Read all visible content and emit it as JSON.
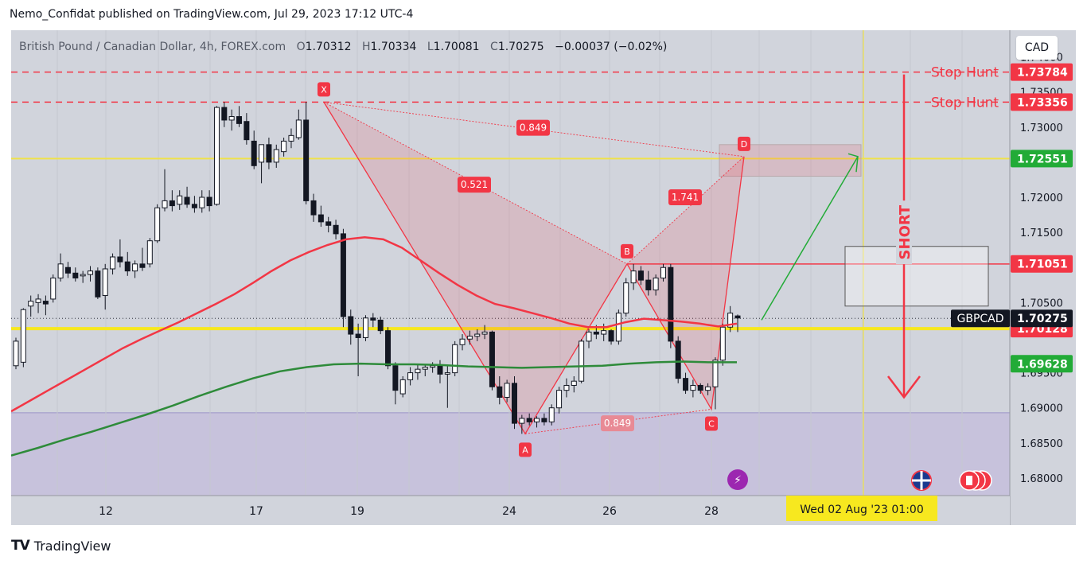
{
  "header": {
    "text": "Nemo_Confidat published on TradingView.com, Jul 29, 2023 17:12 UTC-4"
  },
  "legend": {
    "symbol": "British Pound / Canadian Dollar, 4h, FOREX.com",
    "o_label": "O",
    "o": "1.70312",
    "h_label": "H",
    "h": "1.70334",
    "l_label": "L",
    "l": "1.70081",
    "c_label": "C",
    "c": "1.70275",
    "change": "−0.00037 (−0.02%)"
  },
  "currency_button": "CAD",
  "footer": {
    "logo": "TV",
    "brand": "TradingView"
  },
  "chart_data": {
    "type": "candlestick",
    "symbol": "GBPCAD",
    "timeframe": "4h",
    "x_ticks": [
      "12",
      "17",
      "19",
      "24",
      "26",
      "28"
    ],
    "y_ticks": [
      "1.74000",
      "1.73500",
      "1.73000",
      "1.72000",
      "1.71500",
      "1.70500",
      "1.69500",
      "1.69000",
      "1.68500",
      "1.68000"
    ],
    "ylim": [
      1.6775,
      1.7438
    ],
    "price_labels": [
      {
        "text": "1.73784",
        "value": 1.73784,
        "color": "#f23645",
        "text_color": "#ffffff"
      },
      {
        "text": "1.73356",
        "value": 1.73356,
        "color": "#f23645",
        "text_color": "#ffffff"
      },
      {
        "text": "1.72551",
        "value": 1.72551,
        "color": "#22ab37",
        "text_color": "#ffffff"
      },
      {
        "text": "1.71051",
        "value": 1.71051,
        "color": "#f23645",
        "text_color": "#ffffff"
      },
      {
        "text": "1.70128",
        "value": 1.70128,
        "color": "#f23645",
        "text_color": "#ffffff"
      },
      {
        "text": "1.70275",
        "value": 1.70275,
        "color": "#131722",
        "text_color": "#ffffff"
      },
      {
        "text": "1.69628",
        "value": 1.69628,
        "color": "#22ab37",
        "text_color": "#ffffff"
      }
    ],
    "symbol_tag": "GBPCAD",
    "horizontal_lines": [
      {
        "label": "Stop Hunt",
        "value": 1.73784,
        "color": "#f23645",
        "style": "dashed"
      },
      {
        "label": "Stop Hunt",
        "value": 1.73356,
        "color": "#f23645",
        "style": "dashed"
      }
    ],
    "yellow_lines": [
      1.72551,
      1.70128
    ],
    "time_label": "Wed 02 Aug '23   01:00",
    "pattern_points": [
      {
        "label": "X",
        "value": 1.73356
      },
      {
        "label": "A",
        "value": 1.6863
      },
      {
        "label": "B",
        "value": 1.7105
      },
      {
        "label": "C",
        "value": 1.6898
      },
      {
        "label": "D",
        "value": 1.7258
      }
    ],
    "ratios": [
      "0.849",
      "0.521",
      "1.741",
      "0.849"
    ],
    "annotation_text": "SHORT",
    "candles": [
      {
        "o": 1.696,
        "h": 1.7,
        "l": 1.6955,
        "c": 1.6995
      },
      {
        "o": 1.6965,
        "h": 1.7042,
        "l": 1.6958,
        "c": 1.704
      },
      {
        "o": 1.7045,
        "h": 1.706,
        "l": 1.703,
        "c": 1.7052
      },
      {
        "o": 1.705,
        "h": 1.7062,
        "l": 1.7035,
        "c": 1.7055
      },
      {
        "o": 1.7052,
        "h": 1.706,
        "l": 1.7032,
        "c": 1.7048
      },
      {
        "o": 1.7055,
        "h": 1.709,
        "l": 1.705,
        "c": 1.7085
      },
      {
        "o": 1.7085,
        "h": 1.712,
        "l": 1.708,
        "c": 1.7105
      },
      {
        "o": 1.71,
        "h": 1.7108,
        "l": 1.7085,
        "c": 1.7092
      },
      {
        "o": 1.7092,
        "h": 1.71,
        "l": 1.708,
        "c": 1.7085
      },
      {
        "o": 1.7088,
        "h": 1.7095,
        "l": 1.7078,
        "c": 1.709
      },
      {
        "o": 1.709,
        "h": 1.7102,
        "l": 1.708,
        "c": 1.7095
      },
      {
        "o": 1.7095,
        "h": 1.71,
        "l": 1.7055,
        "c": 1.7058
      },
      {
        "o": 1.706,
        "h": 1.7105,
        "l": 1.704,
        "c": 1.7098
      },
      {
        "o": 1.7098,
        "h": 1.712,
        "l": 1.709,
        "c": 1.7115
      },
      {
        "o": 1.7115,
        "h": 1.714,
        "l": 1.71,
        "c": 1.7108
      },
      {
        "o": 1.7108,
        "h": 1.7122,
        "l": 1.7088,
        "c": 1.7095
      },
      {
        "o": 1.7095,
        "h": 1.711,
        "l": 1.7085,
        "c": 1.7105
      },
      {
        "o": 1.7105,
        "h": 1.7128,
        "l": 1.7095,
        "c": 1.71
      },
      {
        "o": 1.7105,
        "h": 1.7142,
        "l": 1.71,
        "c": 1.7138
      },
      {
        "o": 1.7138,
        "h": 1.719,
        "l": 1.7135,
        "c": 1.7185
      },
      {
        "o": 1.7185,
        "h": 1.724,
        "l": 1.718,
        "c": 1.7195
      },
      {
        "o": 1.7195,
        "h": 1.721,
        "l": 1.718,
        "c": 1.7188
      },
      {
        "o": 1.719,
        "h": 1.721,
        "l": 1.7182,
        "c": 1.7202
      },
      {
        "o": 1.72,
        "h": 1.7215,
        "l": 1.7185,
        "c": 1.719
      },
      {
        "o": 1.719,
        "h": 1.7202,
        "l": 1.7178,
        "c": 1.7185
      },
      {
        "o": 1.7185,
        "h": 1.721,
        "l": 1.7178,
        "c": 1.72
      },
      {
        "o": 1.72,
        "h": 1.721,
        "l": 1.718,
        "c": 1.7188
      },
      {
        "o": 1.719,
        "h": 1.733,
        "l": 1.7188,
        "c": 1.7328
      },
      {
        "o": 1.7328,
        "h": 1.7336,
        "l": 1.73,
        "c": 1.731
      },
      {
        "o": 1.731,
        "h": 1.7325,
        "l": 1.7295,
        "c": 1.7315
      },
      {
        "o": 1.7315,
        "h": 1.733,
        "l": 1.73,
        "c": 1.7305
      },
      {
        "o": 1.7308,
        "h": 1.732,
        "l": 1.7275,
        "c": 1.7282
      },
      {
        "o": 1.728,
        "h": 1.7295,
        "l": 1.724,
        "c": 1.7245
      },
      {
        "o": 1.725,
        "h": 1.727,
        "l": 1.722,
        "c": 1.7275
      },
      {
        "o": 1.7275,
        "h": 1.7285,
        "l": 1.724,
        "c": 1.725
      },
      {
        "o": 1.725,
        "h": 1.7275,
        "l": 1.7242,
        "c": 1.7268
      },
      {
        "o": 1.7265,
        "h": 1.7285,
        "l": 1.7258,
        "c": 1.728
      },
      {
        "o": 1.728,
        "h": 1.7298,
        "l": 1.727,
        "c": 1.7288
      },
      {
        "o": 1.7285,
        "h": 1.7325,
        "l": 1.7282,
        "c": 1.731
      },
      {
        "o": 1.731,
        "h": 1.7336,
        "l": 1.719,
        "c": 1.7195
      },
      {
        "o": 1.7195,
        "h": 1.7205,
        "l": 1.7165,
        "c": 1.7175
      },
      {
        "o": 1.7175,
        "h": 1.7188,
        "l": 1.7158,
        "c": 1.7165
      },
      {
        "o": 1.7165,
        "h": 1.7172,
        "l": 1.715,
        "c": 1.716
      },
      {
        "o": 1.716,
        "h": 1.7168,
        "l": 1.714,
        "c": 1.7148
      },
      {
        "o": 1.7148,
        "h": 1.7155,
        "l": 1.7015,
        "c": 1.703
      },
      {
        "o": 1.703,
        "h": 1.704,
        "l": 1.699,
        "c": 1.7005
      },
      {
        "o": 1.7005,
        "h": 1.702,
        "l": 1.6945,
        "c": 1.7
      },
      {
        "o": 1.7,
        "h": 1.7032,
        "l": 1.6995,
        "c": 1.7028
      },
      {
        "o": 1.7028,
        "h": 1.7035,
        "l": 1.7015,
        "c": 1.7025
      },
      {
        "o": 1.7025,
        "h": 1.703,
        "l": 1.7005,
        "c": 1.701
      },
      {
        "o": 1.701,
        "h": 1.7015,
        "l": 1.6955,
        "c": 1.696
      },
      {
        "o": 1.696,
        "h": 1.6965,
        "l": 1.6905,
        "c": 1.6925
      },
      {
        "o": 1.692,
        "h": 1.6945,
        "l": 1.6915,
        "c": 1.694
      },
      {
        "o": 1.694,
        "h": 1.6958,
        "l": 1.6932,
        "c": 1.695
      },
      {
        "o": 1.695,
        "h": 1.6962,
        "l": 1.694,
        "c": 1.6955
      },
      {
        "o": 1.6955,
        "h": 1.6962,
        "l": 1.6945,
        "c": 1.6958
      },
      {
        "o": 1.6958,
        "h": 1.6965,
        "l": 1.695,
        "c": 1.696
      },
      {
        "o": 1.696,
        "h": 1.6968,
        "l": 1.6935,
        "c": 1.6948
      },
      {
        "o": 1.6948,
        "h": 1.696,
        "l": 1.69,
        "c": 1.695
      },
      {
        "o": 1.695,
        "h": 1.6995,
        "l": 1.6945,
        "c": 1.699
      },
      {
        "o": 1.699,
        "h": 1.7005,
        "l": 1.6982,
        "c": 1.6998
      },
      {
        "o": 1.6998,
        "h": 1.701,
        "l": 1.699,
        "c": 1.7002
      },
      {
        "o": 1.7002,
        "h": 1.7012,
        "l": 1.6995,
        "c": 1.7005
      },
      {
        "o": 1.7005,
        "h": 1.7018,
        "l": 1.6998,
        "c": 1.7008
      },
      {
        "o": 1.7008,
        "h": 1.701,
        "l": 1.6925,
        "c": 1.693
      },
      {
        "o": 1.693,
        "h": 1.6945,
        "l": 1.6905,
        "c": 1.6915
      },
      {
        "o": 1.6915,
        "h": 1.694,
        "l": 1.6908,
        "c": 1.6935
      },
      {
        "o": 1.6935,
        "h": 1.6945,
        "l": 1.687,
        "c": 1.6878
      },
      {
        "o": 1.6878,
        "h": 1.689,
        "l": 1.6863,
        "c": 1.6885
      },
      {
        "o": 1.6885,
        "h": 1.6892,
        "l": 1.6875,
        "c": 1.688
      },
      {
        "o": 1.688,
        "h": 1.6888,
        "l": 1.6872,
        "c": 1.6885
      },
      {
        "o": 1.6885,
        "h": 1.6892,
        "l": 1.6875,
        "c": 1.688
      },
      {
        "o": 1.688,
        "h": 1.6905,
        "l": 1.6875,
        "c": 1.69
      },
      {
        "o": 1.69,
        "h": 1.693,
        "l": 1.6892,
        "c": 1.6925
      },
      {
        "o": 1.6925,
        "h": 1.6942,
        "l": 1.6915,
        "c": 1.6932
      },
      {
        "o": 1.6932,
        "h": 1.6945,
        "l": 1.6922,
        "c": 1.6938
      },
      {
        "o": 1.6938,
        "h": 1.6998,
        "l": 1.6935,
        "c": 1.6995
      },
      {
        "o": 1.6995,
        "h": 1.7012,
        "l": 1.6985,
        "c": 1.7008
      },
      {
        "o": 1.7008,
        "h": 1.7018,
        "l": 1.6998,
        "c": 1.7005
      },
      {
        "o": 1.7005,
        "h": 1.702,
        "l": 1.6995,
        "c": 1.701
      },
      {
        "o": 1.701,
        "h": 1.7012,
        "l": 1.699,
        "c": 1.6995
      },
      {
        "o": 1.6995,
        "h": 1.704,
        "l": 1.699,
        "c": 1.7035
      },
      {
        "o": 1.7035,
        "h": 1.7085,
        "l": 1.703,
        "c": 1.7078
      },
      {
        "o": 1.7078,
        "h": 1.7105,
        "l": 1.7068,
        "c": 1.7095
      },
      {
        "o": 1.7095,
        "h": 1.7102,
        "l": 1.7075,
        "c": 1.7082
      },
      {
        "o": 1.7082,
        "h": 1.7095,
        "l": 1.706,
        "c": 1.7068
      },
      {
        "o": 1.7068,
        "h": 1.709,
        "l": 1.706,
        "c": 1.7085
      },
      {
        "o": 1.7085,
        "h": 1.7105,
        "l": 1.708,
        "c": 1.71
      },
      {
        "o": 1.71,
        "h": 1.7105,
        "l": 1.6985,
        "c": 1.6995
      },
      {
        "o": 1.6995,
        "h": 1.7002,
        "l": 1.6935,
        "c": 1.6942
      },
      {
        "o": 1.6942,
        "h": 1.695,
        "l": 1.692,
        "c": 1.6925
      },
      {
        "o": 1.6925,
        "h": 1.694,
        "l": 1.6915,
        "c": 1.6932
      },
      {
        "o": 1.6932,
        "h": 1.6935,
        "l": 1.692,
        "c": 1.6925
      },
      {
        "o": 1.6925,
        "h": 1.6935,
        "l": 1.6918,
        "c": 1.693
      },
      {
        "o": 1.693,
        "h": 1.6972,
        "l": 1.6898,
        "c": 1.6968
      },
      {
        "o": 1.6968,
        "h": 1.702,
        "l": 1.696,
        "c": 1.7015
      },
      {
        "o": 1.7015,
        "h": 1.7045,
        "l": 1.7008,
        "c": 1.7035
      },
      {
        "o": 1.7031,
        "h": 1.7033,
        "l": 1.7008,
        "c": 1.7028
      }
    ],
    "ema_red": [
      1.6895,
      1.691,
      1.6925,
      1.694,
      1.6955,
      1.697,
      1.6985,
      1.6998,
      1.701,
      1.7022,
      1.7035,
      1.7048,
      1.7062,
      1.7078,
      1.7095,
      1.711,
      1.7122,
      1.7132,
      1.714,
      1.7143,
      1.714,
      1.7128,
      1.711,
      1.7092,
      1.7075,
      1.706,
      1.7048,
      1.7042,
      1.7035,
      1.7028,
      1.702,
      1.7015,
      1.7015,
      1.7022,
      1.7027,
      1.7025,
      1.7023,
      1.702,
      1.7016,
      1.702
    ],
    "ema_green": [
      1.6832,
      1.6843,
      1.6855,
      1.6866,
      1.6878,
      1.689,
      1.6903,
      1.6917,
      1.693,
      1.6942,
      1.6952,
      1.6958,
      1.6962,
      1.6963,
      1.6962,
      1.6962,
      1.6961,
      1.6959,
      1.6958,
      1.6957,
      1.6958,
      1.6959,
      1.696,
      1.6963,
      1.6965,
      1.6966,
      1.6965,
      1.6965
    ]
  }
}
